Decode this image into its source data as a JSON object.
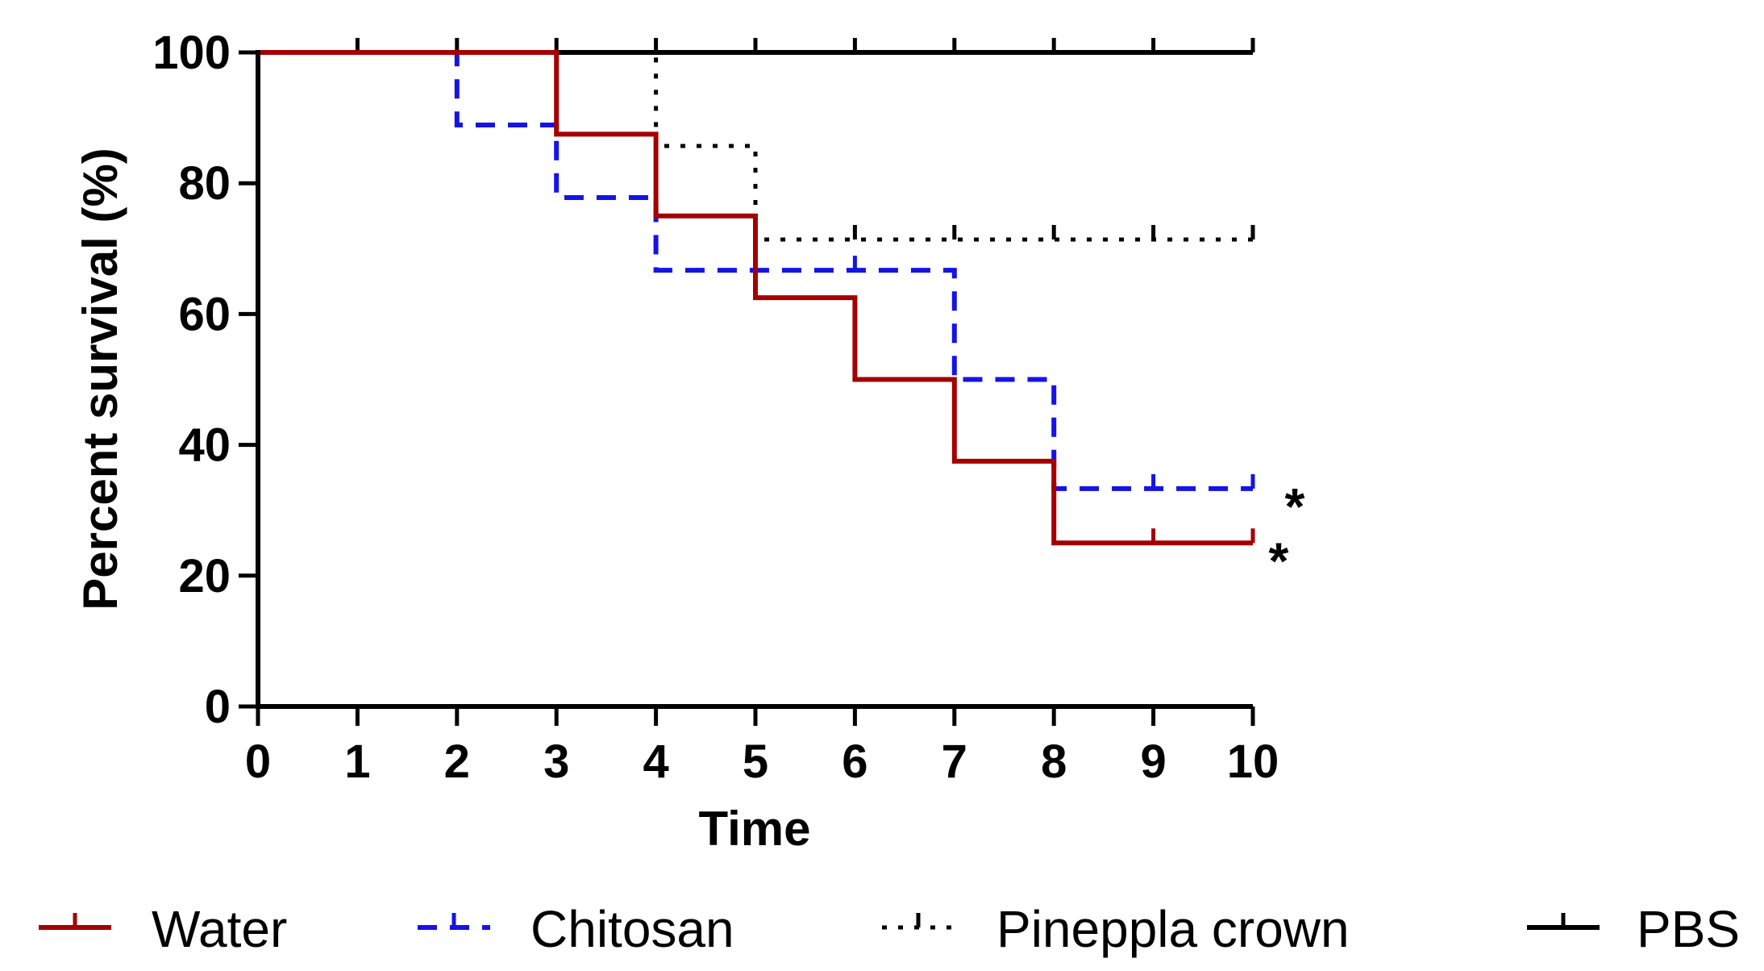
{
  "chart_data": {
    "type": "line",
    "subtype": "kaplan-meier-step",
    "title": "",
    "xlabel": "Time",
    "ylabel": "Percent survival (%)",
    "xlim": [
      0,
      10
    ],
    "ylim": [
      0,
      100
    ],
    "x_ticks": [
      "0",
      "1",
      "2",
      "3",
      "4",
      "5",
      "6",
      "7",
      "8",
      "9",
      "10"
    ],
    "y_ticks": [
      "0",
      "20",
      "40",
      "60",
      "80",
      "100"
    ],
    "legend_position": "bottom",
    "series": [
      {
        "name": "Water",
        "color": "#a50000",
        "dash": "solid",
        "steps": [
          [
            0,
            100
          ],
          [
            3,
            87.5
          ],
          [
            4,
            75
          ],
          [
            5,
            62.5
          ],
          [
            6,
            50
          ],
          [
            7,
            37.5
          ],
          [
            8,
            25
          ]
        ],
        "end_x": 10,
        "censor_marks": [
          9,
          10
        ],
        "significance": "*"
      },
      {
        "name": "Chitosan",
        "color": "#1414e6",
        "dash": "dashed",
        "steps": [
          [
            0,
            100
          ],
          [
            2,
            88.9
          ],
          [
            3,
            77.8
          ],
          [
            4,
            66.7
          ],
          [
            7,
            50
          ],
          [
            8,
            33.3
          ]
        ],
        "end_x": 10,
        "censor_marks": [
          6,
          9,
          10
        ],
        "significance": "*"
      },
      {
        "name": "Pineppla crown",
        "color": "#000000",
        "dash": "dotted",
        "steps": [
          [
            0,
            100
          ],
          [
            4,
            85.7
          ],
          [
            5,
            71.4
          ]
        ],
        "end_x": 10,
        "censor_marks": [
          6,
          7,
          8,
          9,
          10
        ],
        "significance": ""
      },
      {
        "name": "PBS",
        "color": "#000000",
        "dash": "solid",
        "steps": [
          [
            0,
            100
          ]
        ],
        "end_x": 10,
        "censor_marks": [
          1,
          2,
          3,
          4,
          5,
          6,
          7,
          8,
          9,
          10
        ],
        "significance": ""
      }
    ]
  }
}
